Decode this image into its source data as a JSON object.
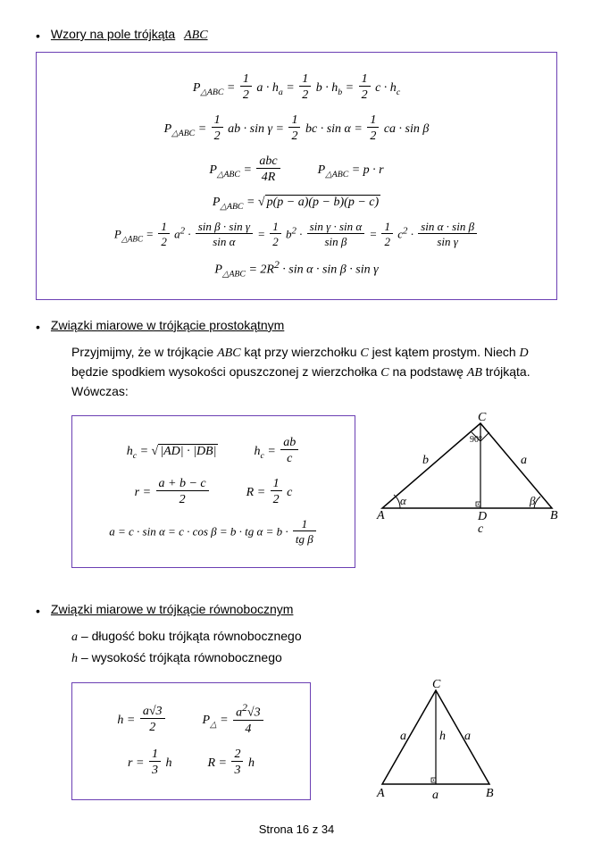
{
  "section1": {
    "heading": "Wzory na pole trójkąta",
    "heading_var": "ABC",
    "formulas": [
      "P<sub>△ABC</sub> = <span class='frac'><span class='n'>1</span><span class='d'>2</span></span> a · h<sub>a</sub> = <span class='frac'><span class='n'>1</span><span class='d'>2</span></span> b · h<sub>b</sub> = <span class='frac'><span class='n'>1</span><span class='d'>2</span></span> c · h<sub>c</sub>",
      "P<sub>△ABC</sub> = <span class='frac'><span class='n'>1</span><span class='d'>2</span></span> ab · sin γ = <span class='frac'><span class='n'>1</span><span class='d'>2</span></span> bc · sin α = <span class='frac'><span class='n'>1</span><span class='d'>2</span></span> ca · sin β",
      "P<sub>△ABC</sub> = <span class='frac'><span class='n'>abc</span><span class='d'>4R</span></span><span class='gap'></span>P<sub>△ABC</sub> = p · r",
      "P<sub>△ABC</sub> = <span class='sqrt-sym'>√</span><span class='sqrt'>p(p − a)(p − b)(p − c)</span>",
      "P<sub>△ABC</sub> = <span class='frac'><span class='n'>1</span><span class='d'>2</span></span> a<sup>2</sup> · <span class='frac'><span class='n'>sin β · sin γ</span><span class='d'>sin α</span></span> = <span class='frac'><span class='n'>1</span><span class='d'>2</span></span> b<sup>2</sup> · <span class='frac'><span class='n'>sin γ · sin α</span><span class='d'>sin β</span></span> = <span class='frac'><span class='n'>1</span><span class='d'>2</span></span> c<sup>2</sup> · <span class='frac'><span class='n'>sin α · sin β</span><span class='d'>sin γ</span></span>",
      "P<sub>△ABC</sub> = 2R<sup>2</sup> · sin α · sin β · sin γ"
    ]
  },
  "section2": {
    "heading": "Związki miarowe w trójkącie prostokątnym",
    "body": "Przyjmijmy, że w trójkącie <span class='italic-var'>ABC</span> kąt przy wierzchołku <span class='italic-var'>C</span> jest kątem prostym. Niech <span class='italic-var'>D</span> będzie spodkiem wysokości opuszczonej z wierzchołka <span class='italic-var'>C</span> na podstawę <span class='italic-var'>AB</span> trójkąta. Wówczas:",
    "formulas": [
      "h<sub>c</sub> = <span class='sqrt-sym'>√</span><span class='sqrt'>|AD| · |DB|</span><span class='gap'></span>h<sub>c</sub> = <span class='frac'><span class='n'>ab</span><span class='d'>c</span></span>",
      "r = <span class='frac'><span class='n'>a + b − c</span><span class='d'>2</span></span><span class='gap'></span>R = <span class='frac'><span class='n'>1</span><span class='d'>2</span></span> c",
      "a = c · sin α = c · cos β = b · tg α = b · <span class='frac'><span class='n'>1</span><span class='d'>tg β</span></span>"
    ],
    "triangle": {
      "A": "A",
      "B": "B",
      "C": "C",
      "D": "D",
      "a": "a",
      "b": "b",
      "c": "c",
      "angle": "90°",
      "alpha": "α",
      "beta": "β"
    }
  },
  "section3": {
    "heading": "Związki miarowe w trójkącie równobocznym",
    "defs": [
      "<span class='italic-var'>a</span> – długość boku trójkąta równobocznego",
      "<span class='italic-var'>h</span> – wysokość trójkąta równobocznego"
    ],
    "formulas": [
      "h = <span class='frac'><span class='n'>a√3</span><span class='d'>2</span></span><span class='gap'></span>P<sub>△</sub> = <span class='frac'><span class='n'>a<sup>2</sup>√3</span><span class='d'>4</span></span>",
      "r = <span class='frac'><span class='n'>1</span><span class='d'>3</span></span> h<span class='gap'></span>R = <span class='frac'><span class='n'>2</span><span class='d'>3</span></span> h"
    ],
    "triangle": {
      "A": "A",
      "B": "B",
      "C": "C",
      "a": "a",
      "h": "h"
    }
  },
  "footer": "Strona 16 z 34"
}
